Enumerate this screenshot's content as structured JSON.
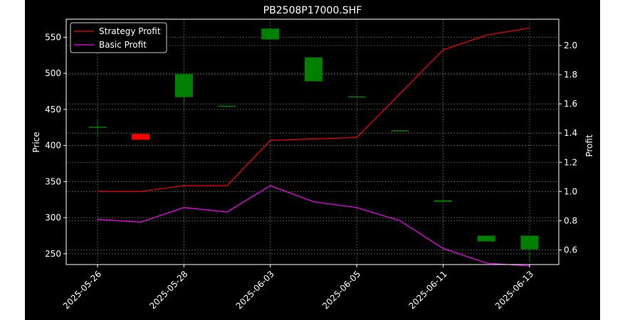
{
  "chart_data": {
    "type": "candlestick+line",
    "title": "PB2508P17000.SHF",
    "ylabel_left": "Price",
    "ylabel_right": "Profit",
    "ylim_left": [
      235,
      575
    ],
    "ylim_right": [
      0.5,
      2.18
    ],
    "yticks_left": [
      250,
      300,
      350,
      400,
      450,
      500,
      550
    ],
    "yticks_right": [
      "0.6",
      "0.8",
      "1.0",
      "1.2",
      "1.4",
      "1.6",
      "1.8",
      "2.0"
    ],
    "xtick_labels": [
      "2025-05-26",
      "2025-05-28",
      "2025-06-03",
      "2025-06-05",
      "2025-06-11",
      "2025-06-13"
    ],
    "grid": true,
    "legend_position": "top-left",
    "colors": {
      "background": "#000000",
      "axes": "#ffffff",
      "grid": "#808080",
      "up": "#008000",
      "down": "#ff0000",
      "strategy": "#ff0000",
      "basic": "#ff00ff"
    },
    "candles": [
      {
        "date": "2025-05-26",
        "open": 426,
        "close": 426,
        "high": 435,
        "low": 412
      },
      {
        "date": "2025-05-27",
        "open": 416,
        "close": 408,
        "high": 416,
        "low": 408
      },
      {
        "date": "2025-05-28",
        "open": 467,
        "close": 499,
        "high": 499,
        "low": 456
      },
      {
        "date": "2025-05-30",
        "open": 455,
        "close": 455,
        "high": 455,
        "low": 455
      },
      {
        "date": "2025-06-03",
        "open": 547,
        "close": 562,
        "high": 562,
        "low": 547
      },
      {
        "date": "2025-06-04",
        "open": 489,
        "close": 522,
        "high": 522,
        "low": 489
      },
      {
        "date": "2025-06-05",
        "open": 468,
        "close": 468,
        "high": 468,
        "low": 468
      },
      {
        "date": "2025-06-06",
        "open": 421,
        "close": 421,
        "high": 421,
        "low": 421
      },
      {
        "date": "2025-06-11",
        "open": 322,
        "close": 324,
        "high": 324,
        "low": 322
      },
      {
        "date": "2025-06-12",
        "open": 267,
        "close": 275,
        "high": 275,
        "low": 267
      },
      {
        "date": "2025-06-13",
        "open": 256,
        "close": 275,
        "high": 275,
        "low": 240
      }
    ],
    "series": [
      {
        "name": "Strategy Profit",
        "values": [
          1.0,
          1.0,
          1.04,
          1.04,
          1.35,
          1.36,
          1.37,
          1.67,
          1.97,
          2.07,
          2.12
        ]
      },
      {
        "name": "Basic Profit",
        "values": [
          0.81,
          0.79,
          0.89,
          0.86,
          1.04,
          0.93,
          0.89,
          0.8,
          0.61,
          0.51,
          0.49
        ]
      }
    ]
  }
}
